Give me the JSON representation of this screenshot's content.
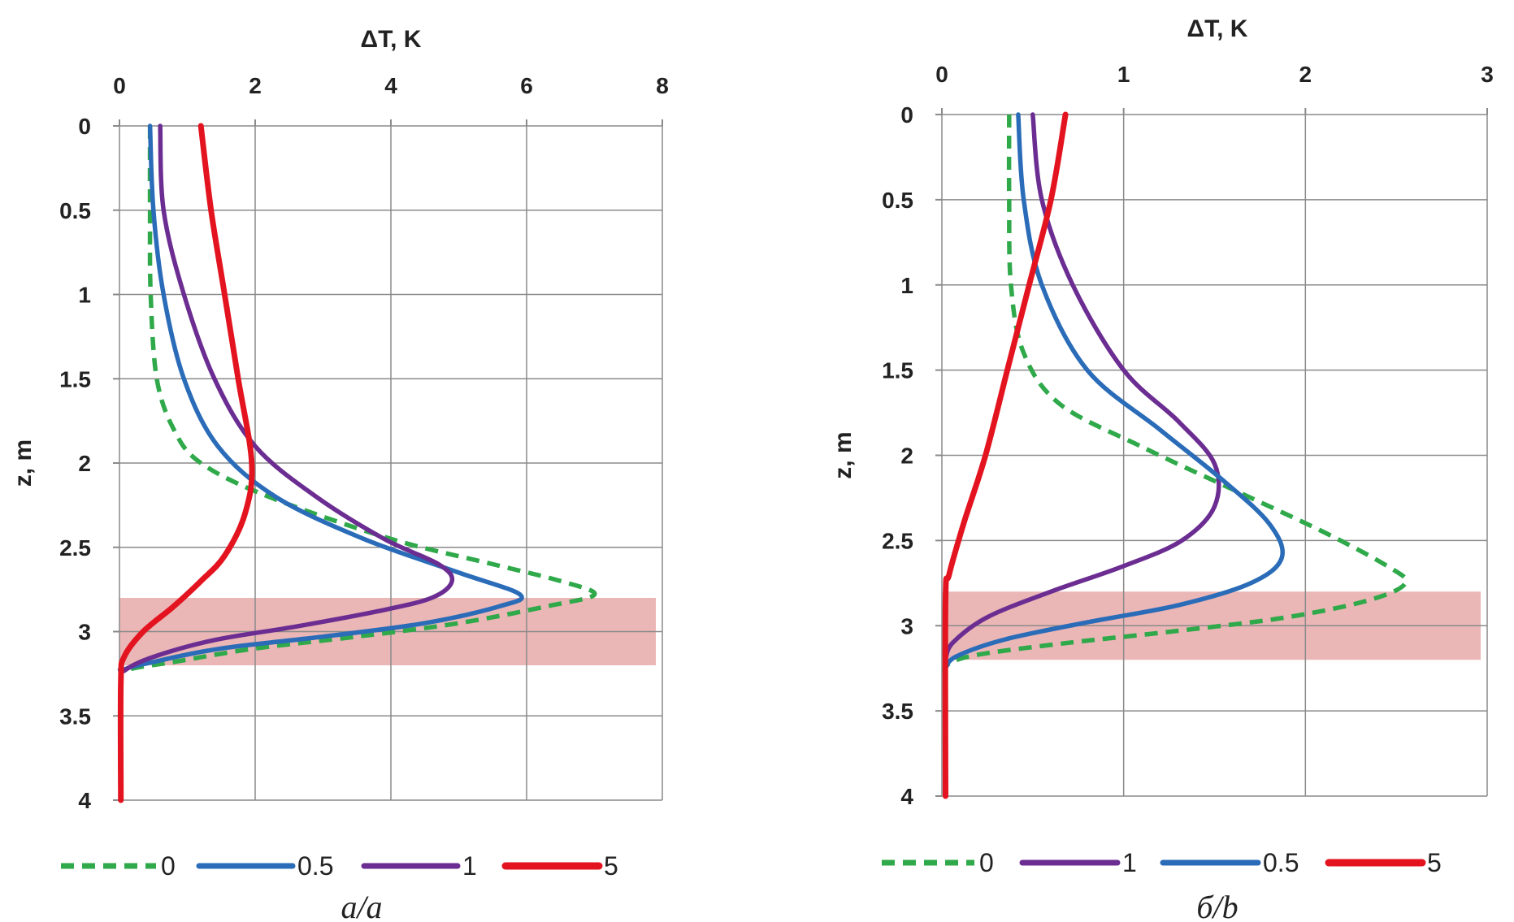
{
  "chart_data": [
    {
      "id": "a",
      "type": "line",
      "title": "",
      "xlabel": "ΔT, K",
      "ylabel": "z, m",
      "xlim": [
        0,
        8
      ],
      "ylim": [
        0,
        4
      ],
      "x_ticks": [
        "0",
        "2",
        "4",
        "6",
        "8"
      ],
      "y_ticks": [
        "0",
        "0.5",
        "1",
        "1.5",
        "2",
        "2.5",
        "3",
        "3.5",
        "4"
      ],
      "grid": true,
      "highlight_band": {
        "z_from": 2.8,
        "z_to": 3.2,
        "color": "#e8a9a9"
      },
      "caption": "a/a",
      "legend": [
        "0",
        "0.5",
        "1",
        "5"
      ],
      "series": [
        {
          "name": "0",
          "color": "#2fa94a",
          "dash": true,
          "points": [
            [
              0.45,
              0
            ],
            [
              0.45,
              0.5
            ],
            [
              0.46,
              1.0
            ],
            [
              0.55,
              1.5
            ],
            [
              0.8,
              1.8
            ],
            [
              1.2,
              2.0
            ],
            [
              2.2,
              2.2
            ],
            [
              4.0,
              2.45
            ],
            [
              5.5,
              2.6
            ],
            [
              6.5,
              2.7
            ],
            [
              7.0,
              2.78
            ],
            [
              6.3,
              2.85
            ],
            [
              5.0,
              2.95
            ],
            [
              3.5,
              3.03
            ],
            [
              2.0,
              3.1
            ],
            [
              0.8,
              3.18
            ],
            [
              0.1,
              3.23
            ],
            [
              0.02,
              3.3
            ],
            [
              0.02,
              4
            ]
          ]
        },
        {
          "name": "0.5",
          "color": "#2b6cb8",
          "dash": false,
          "points": [
            [
              0.45,
              0
            ],
            [
              0.5,
              0.5
            ],
            [
              0.65,
              1.0
            ],
            [
              0.95,
              1.5
            ],
            [
              1.45,
              1.9
            ],
            [
              2.3,
              2.2
            ],
            [
              3.6,
              2.45
            ],
            [
              5.0,
              2.65
            ],
            [
              5.9,
              2.78
            ],
            [
              5.6,
              2.85
            ],
            [
              4.5,
              2.95
            ],
            [
              3.0,
              3.03
            ],
            [
              1.5,
              3.1
            ],
            [
              0.5,
              3.18
            ],
            [
              0.05,
              3.23
            ],
            [
              0.02,
              3.3
            ],
            [
              0.02,
              4
            ]
          ]
        },
        {
          "name": "1",
          "color": "#6b2d91",
          "dash": false,
          "points": [
            [
              0.6,
              0
            ],
            [
              0.65,
              0.5
            ],
            [
              0.95,
              1.0
            ],
            [
              1.4,
              1.5
            ],
            [
              2.0,
              1.9
            ],
            [
              2.9,
              2.2
            ],
            [
              3.9,
              2.45
            ],
            [
              4.7,
              2.6
            ],
            [
              4.9,
              2.7
            ],
            [
              4.6,
              2.8
            ],
            [
              3.8,
              2.88
            ],
            [
              2.6,
              2.97
            ],
            [
              1.4,
              3.05
            ],
            [
              0.5,
              3.15
            ],
            [
              0.08,
              3.23
            ],
            [
              0.02,
              3.3
            ],
            [
              0.02,
              4
            ]
          ]
        },
        {
          "name": "5",
          "color": "#e3141f",
          "dash": false,
          "points": [
            [
              1.2,
              0
            ],
            [
              1.35,
              0.5
            ],
            [
              1.55,
              1.0
            ],
            [
              1.75,
              1.5
            ],
            [
              1.95,
              2.0
            ],
            [
              1.85,
              2.3
            ],
            [
              1.55,
              2.55
            ],
            [
              1.2,
              2.7
            ],
            [
              0.8,
              2.85
            ],
            [
              0.35,
              3.0
            ],
            [
              0.07,
              3.15
            ],
            [
              0.02,
              3.3
            ],
            [
              0.02,
              4
            ]
          ]
        }
      ]
    },
    {
      "id": "b",
      "type": "line",
      "title": "",
      "xlabel": "ΔT, K",
      "ylabel": "z, m",
      "xlim": [
        0,
        3
      ],
      "ylim": [
        0,
        4
      ],
      "x_ticks": [
        "0",
        "1",
        "2",
        "3"
      ],
      "y_ticks": [
        "0",
        "0.5",
        "1",
        "1.5",
        "2",
        "2.5",
        "3",
        "3.5",
        "4"
      ],
      "grid": true,
      "highlight_band": {
        "z_from": 2.8,
        "z_to": 3.2,
        "color": "#e8a9a9"
      },
      "caption": "б/b",
      "legend": [
        "0",
        "1",
        "0.5",
        "5"
      ],
      "series": [
        {
          "name": "0",
          "color": "#2fa94a",
          "dash": true,
          "points": [
            [
              0.37,
              0
            ],
            [
              0.37,
              0.5
            ],
            [
              0.38,
              1.0
            ],
            [
              0.45,
              1.4
            ],
            [
              0.65,
              1.7
            ],
            [
              1.1,
              1.95
            ],
            [
              1.6,
              2.2
            ],
            [
              2.1,
              2.45
            ],
            [
              2.45,
              2.65
            ],
            [
              2.55,
              2.75
            ],
            [
              2.35,
              2.85
            ],
            [
              1.9,
              2.95
            ],
            [
              1.3,
              3.03
            ],
            [
              0.7,
              3.1
            ],
            [
              0.2,
              3.17
            ],
            [
              0.03,
              3.23
            ],
            [
              0.02,
              3.3
            ]
          ]
        },
        {
          "name": "1",
          "color": "#6b2d91",
          "dash": false,
          "points": [
            [
              0.5,
              0
            ],
            [
              0.55,
              0.5
            ],
            [
              0.72,
              1.0
            ],
            [
              1.0,
              1.5
            ],
            [
              1.3,
              1.8
            ],
            [
              1.5,
              2.05
            ],
            [
              1.5,
              2.3
            ],
            [
              1.32,
              2.5
            ],
            [
              1.0,
              2.65
            ],
            [
              0.6,
              2.8
            ],
            [
              0.25,
              2.95
            ],
            [
              0.06,
              3.1
            ],
            [
              0.02,
              3.2
            ]
          ]
        },
        {
          "name": "0.5",
          "color": "#2b6cb8",
          "dash": false,
          "points": [
            [
              0.42,
              0
            ],
            [
              0.45,
              0.5
            ],
            [
              0.55,
              1.0
            ],
            [
              0.8,
              1.5
            ],
            [
              1.2,
              1.85
            ],
            [
              1.55,
              2.15
            ],
            [
              1.8,
              2.4
            ],
            [
              1.87,
              2.6
            ],
            [
              1.7,
              2.75
            ],
            [
              1.3,
              2.88
            ],
            [
              0.8,
              2.98
            ],
            [
              0.35,
              3.08
            ],
            [
              0.08,
              3.18
            ],
            [
              0.02,
              3.25
            ]
          ]
        },
        {
          "name": "5",
          "color": "#e3141f",
          "dash": false,
          "points": [
            [
              0.68,
              0
            ],
            [
              0.6,
              0.5
            ],
            [
              0.48,
              1.0
            ],
            [
              0.36,
              1.5
            ],
            [
              0.24,
              2.0
            ],
            [
              0.12,
              2.4
            ],
            [
              0.04,
              2.7
            ],
            [
              0.02,
              2.85
            ],
            [
              0.02,
              4
            ]
          ]
        }
      ]
    }
  ]
}
